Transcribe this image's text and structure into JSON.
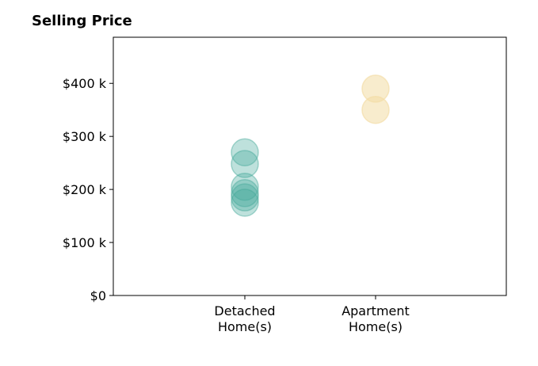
{
  "chart_data": {
    "type": "scatter",
    "title": "Selling Price",
    "xlabel": "",
    "ylabel": "",
    "categories": [
      [
        "Detached",
        "Home(s)"
      ],
      [
        "Apartment",
        "Home(s)"
      ]
    ],
    "yticks": [
      {
        "value": 0,
        "label": "$0"
      },
      {
        "value": 100000,
        "label": "$100 k"
      },
      {
        "value": 200000,
        "label": "$200 k"
      },
      {
        "value": 300000,
        "label": "$300 k"
      },
      {
        "value": 400000,
        "label": "$400 k"
      }
    ],
    "ylim": [
      0,
      487000
    ],
    "grid": false,
    "series": [
      {
        "category_index": 0,
        "color": "#45A99A",
        "alpha": 0.35,
        "values": [
          270000,
          248000,
          205000,
          193000,
          185000,
          175000
        ]
      },
      {
        "category_index": 1,
        "color": "#F2DCA4",
        "alpha": 0.55,
        "values": [
          390000,
          350000
        ]
      }
    ]
  }
}
